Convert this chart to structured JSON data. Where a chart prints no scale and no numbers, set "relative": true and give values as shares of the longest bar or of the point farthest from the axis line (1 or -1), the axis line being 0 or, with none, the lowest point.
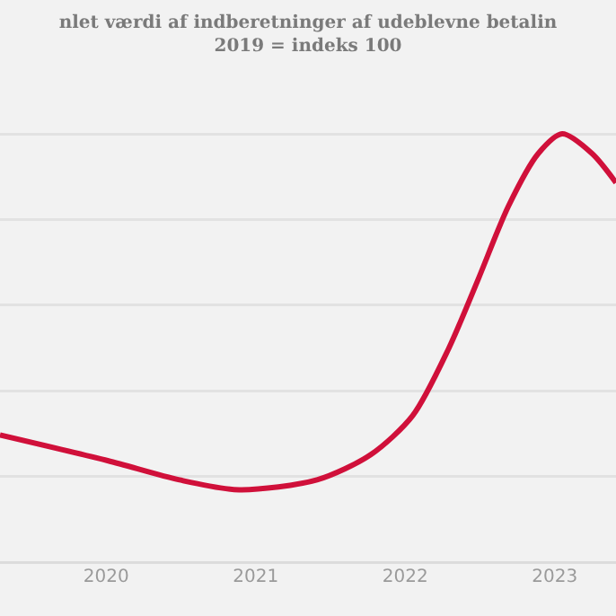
{
  "chart_data": {
    "type": "line",
    "title": "nlet værdi af indberetninger af udeblevne betalin",
    "subtitle": "2019 = indeks 100",
    "relative": true,
    "x": [
      2019.29,
      2020.01,
      2020.49,
      2020.89,
      2021.41,
      2021.77,
      2022.05,
      2022.29,
      2022.49,
      2022.69,
      2022.89,
      2023.05,
      2023.25,
      2023.41
    ],
    "xlim": [
      2019.29,
      2023.41
    ],
    "xticks": [
      2020,
      2021,
      2022,
      2023
    ],
    "series": [
      {
        "color": "#d0103a",
        "values": [
          0.297,
          0.237,
          0.192,
          0.169,
          0.192,
          0.251,
          0.342,
          0.498,
          0.662,
          0.831,
          0.954,
          1.0,
          0.954,
          0.886
        ]
      }
    ],
    "grid": "y",
    "marker": "none",
    "line_style": "solid"
  }
}
